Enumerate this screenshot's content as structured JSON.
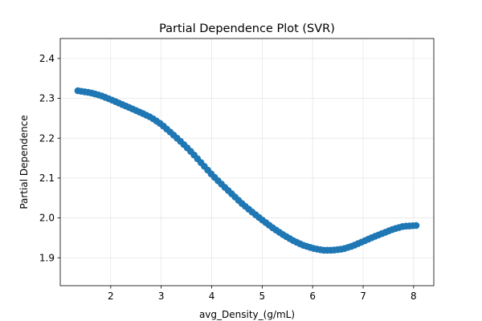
{
  "chart_data": {
    "type": "scatter",
    "title": "Partial Dependence Plot (SVR)",
    "xlabel": "avg_Density_(g/mL)",
    "ylabel": "Partial Dependence",
    "xlim": [
      1.0,
      8.4
    ],
    "ylim": [
      1.83,
      2.45
    ],
    "x_ticks": [
      "2",
      "3",
      "4",
      "5",
      "6",
      "7",
      "8"
    ],
    "y_ticks": [
      "1.9",
      "2.0",
      "2.1",
      "2.2",
      "2.3",
      "2.4"
    ],
    "grid": true,
    "color": "#1f77b4",
    "curve_points": [
      [
        1.35,
        2.319
      ],
      [
        1.6,
        2.314
      ],
      [
        1.8,
        2.307
      ],
      [
        2.0,
        2.297
      ],
      [
        2.2,
        2.286
      ],
      [
        2.4,
        2.275
      ],
      [
        2.6,
        2.264
      ],
      [
        2.8,
        2.252
      ],
      [
        3.0,
        2.235
      ],
      [
        3.2,
        2.213
      ],
      [
        3.4,
        2.19
      ],
      [
        3.6,
        2.165
      ],
      [
        3.8,
        2.137
      ],
      [
        4.0,
        2.109
      ],
      [
        4.2,
        2.084
      ],
      [
        4.4,
        2.06
      ],
      [
        4.6,
        2.036
      ],
      [
        4.8,
        2.015
      ],
      [
        5.0,
        1.995
      ],
      [
        5.2,
        1.976
      ],
      [
        5.4,
        1.959
      ],
      [
        5.6,
        1.944
      ],
      [
        5.8,
        1.932
      ],
      [
        6.0,
        1.924
      ],
      [
        6.2,
        1.919
      ],
      [
        6.4,
        1.919
      ],
      [
        6.6,
        1.922
      ],
      [
        6.8,
        1.93
      ],
      [
        7.0,
        1.941
      ],
      [
        7.2,
        1.952
      ],
      [
        7.4,
        1.962
      ],
      [
        7.6,
        1.972
      ],
      [
        7.8,
        1.979
      ],
      [
        8.05,
        1.981
      ]
    ],
    "num_points": 100
  }
}
